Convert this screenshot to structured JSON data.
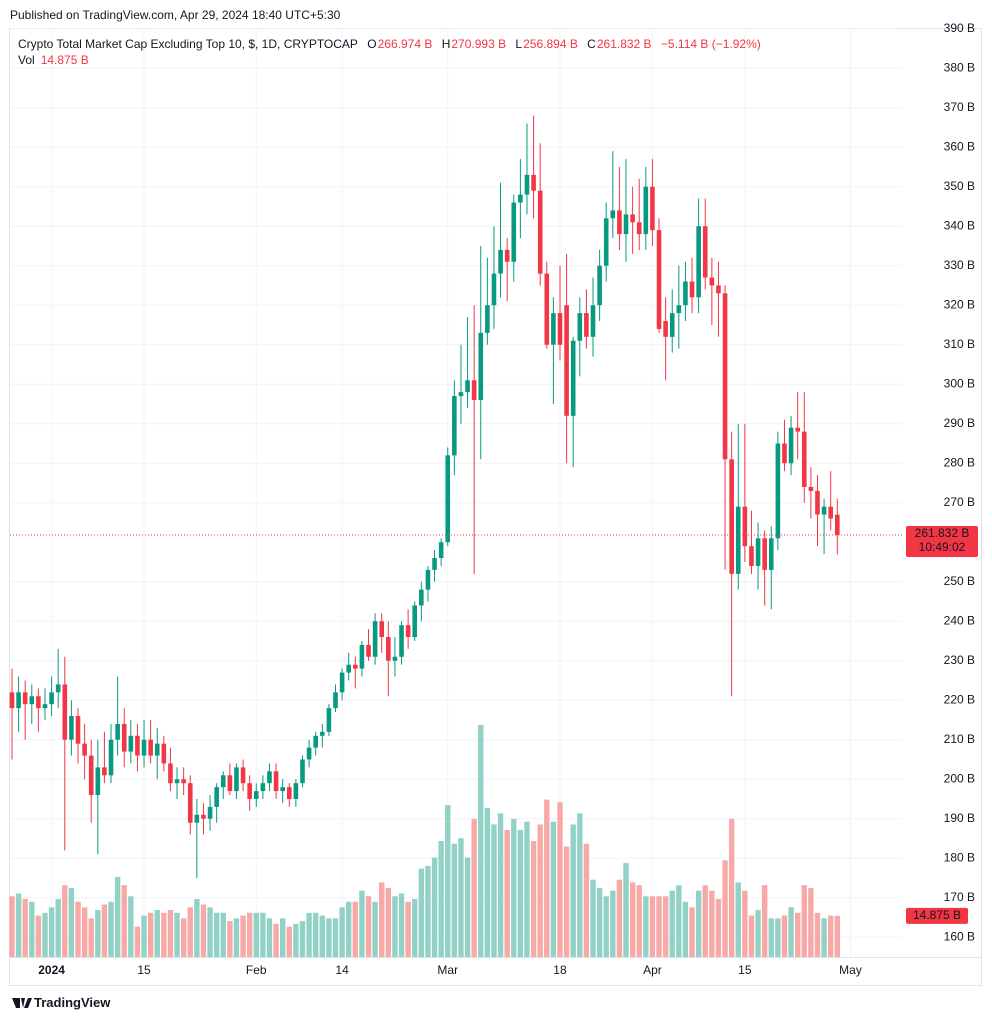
{
  "header": {
    "published": "Published on TradingView.com, Apr 29, 2024 18:40 UTC+5:30"
  },
  "chart_data": {
    "type": "candlestick",
    "title": "Crypto Total Market Cap Excluding Top 10, $, 1D, CRYPTOCAP",
    "readout": {
      "o": "O",
      "o_value": "266.974 B",
      "h": "H",
      "h_value": "270.993 B",
      "l": "L",
      "l_value": "256.894 B",
      "c": "C",
      "c_value": "261.832 B",
      "change": "−5.114 B (−1.92%)"
    },
    "volume_title": "Vol",
    "volume_value_label": "14.875 B",
    "close_value_label": "261.832 B",
    "countdown": "10:49:02",
    "colors": {
      "up": "#089981",
      "down": "#f23645",
      "volume_up": "#92d2c6",
      "volume_down": "#f7a9a7"
    },
    "open": [
      222,
      218,
      222,
      219,
      221,
      218,
      219,
      222,
      224,
      210,
      216,
      209,
      206,
      196,
      203,
      201,
      210,
      214,
      207,
      211,
      206,
      210,
      206,
      209,
      204,
      199,
      200,
      199,
      189,
      191,
      190,
      193,
      198,
      201,
      197,
      203,
      199,
      195,
      197,
      199,
      202,
      197,
      198,
      195,
      199,
      205,
      208,
      211,
      212,
      218,
      222,
      227,
      229,
      228,
      234,
      231,
      240,
      236,
      230,
      231,
      239,
      236,
      244,
      248,
      253,
      256,
      260,
      282,
      297,
      298,
      301,
      296,
      313,
      320,
      328,
      334,
      331,
      346,
      348,
      353,
      349,
      328,
      310,
      318,
      320,
      292,
      311,
      318,
      312,
      320,
      330,
      342,
      344,
      338,
      343,
      341,
      338,
      350,
      339,
      316,
      312,
      318,
      320,
      326,
      322,
      340,
      327,
      325,
      323,
      281,
      252,
      269,
      259,
      254,
      261,
      253,
      261,
      285,
      280,
      289,
      288,
      274,
      273,
      267,
      269,
      266.974
    ],
    "high": [
      228,
      226,
      225,
      224,
      223,
      223,
      226,
      233,
      231,
      220,
      218,
      214,
      210,
      210,
      212,
      214,
      226,
      218,
      215,
      214,
      215,
      215,
      213,
      211,
      208,
      203,
      203,
      201,
      195,
      194,
      196,
      199,
      202,
      204,
      204,
      205,
      201,
      199,
      201,
      204,
      204,
      200,
      199,
      200,
      206,
      210,
      212,
      214,
      219,
      224,
      228,
      232,
      231,
      235,
      238,
      242,
      242,
      240,
      236,
      240,
      243,
      245,
      250,
      254,
      258,
      261,
      284,
      301,
      310,
      317,
      320,
      335,
      332,
      340,
      351,
      337,
      348,
      357,
      366,
      368,
      361,
      331,
      322,
      330,
      333,
      312,
      322,
      324,
      327,
      334,
      346,
      359,
      355,
      357,
      350,
      352,
      355,
      357,
      342,
      322,
      324,
      330,
      331,
      332,
      347,
      347,
      332,
      331,
      325,
      288,
      290,
      290,
      268,
      265,
      263,
      264,
      288,
      291,
      292,
      298,
      298,
      279,
      277,
      271,
      278,
      270.993
    ],
    "low": [
      205,
      212,
      210,
      214,
      212,
      215,
      216,
      218,
      182,
      206,
      204,
      200,
      189,
      181,
      199,
      199,
      206,
      203,
      204,
      202,
      203,
      204,
      200,
      202,
      197,
      195,
      196,
      186,
      175,
      186,
      187,
      189,
      195,
      196,
      195,
      197,
      192,
      193,
      195,
      197,
      195,
      194,
      193,
      193,
      198,
      203,
      206,
      208,
      211,
      217,
      220,
      225,
      223,
      226,
      230,
      229,
      232,
      221,
      226,
      229,
      233,
      235,
      240,
      245,
      250,
      254,
      259,
      277,
      290,
      294,
      252,
      281,
      310,
      314,
      322,
      321,
      326,
      337,
      343,
      342,
      325,
      309,
      295,
      306,
      280,
      279,
      302,
      309,
      307,
      316,
      326,
      337,
      334,
      331,
      333,
      334,
      334,
      335,
      313,
      301,
      308,
      309,
      316,
      318,
      318,
      324,
      315,
      312,
      253,
      221,
      248,
      255,
      252,
      248,
      244,
      243,
      258,
      278,
      277,
      281,
      270,
      266,
      259,
      257,
      263,
      256.894
    ],
    "close": [
      218,
      222,
      219,
      221,
      218,
      219,
      222,
      224,
      210,
      216,
      209,
      206,
      196,
      203,
      201,
      210,
      214,
      207,
      211,
      206,
      210,
      206,
      209,
      204,
      199,
      200,
      199,
      189,
      191,
      190,
      193,
      198,
      201,
      197,
      203,
      199,
      195,
      197,
      199,
      202,
      197,
      198,
      195,
      199,
      205,
      208,
      211,
      212,
      218,
      222,
      227,
      229,
      228,
      234,
      231,
      240,
      236,
      230,
      231,
      239,
      236,
      244,
      248,
      253,
      256,
      260,
      282,
      297,
      298,
      301,
      296,
      313,
      320,
      328,
      334,
      331,
      346,
      348,
      353,
      349,
      328,
      310,
      318,
      310,
      292,
      311,
      318,
      312,
      320,
      330,
      342,
      344,
      338,
      343,
      341,
      338,
      350,
      339,
      314,
      312,
      318,
      320,
      326,
      322,
      340,
      327,
      325,
      323,
      281,
      252,
      269,
      259,
      254,
      261,
      253,
      261,
      285,
      280,
      289,
      288,
      274,
      273,
      267,
      269,
      266,
      261.832
    ],
    "volume": [
      22,
      23,
      21,
      20,
      15,
      16,
      18,
      21,
      26,
      25,
      20,
      18,
      14,
      17,
      19,
      20,
      29,
      26,
      22,
      11,
      15,
      16,
      17,
      16,
      17,
      16,
      14,
      18,
      21,
      19,
      18,
      16,
      16,
      13,
      14,
      15,
      16,
      16,
      16,
      14,
      12,
      14,
      11,
      12,
      13,
      16,
      16,
      15,
      14,
      14,
      18,
      20,
      20,
      24,
      22,
      20,
      27,
      25,
      22,
      23,
      20,
      21,
      32,
      33,
      36,
      42,
      55,
      41,
      43,
      36,
      50,
      84,
      54,
      48,
      52,
      46,
      50,
      46,
      49,
      42,
      48,
      57,
      49,
      56,
      40,
      48,
      52,
      41,
      28,
      25,
      22,
      24,
      28,
      34,
      27,
      26,
      22,
      22,
      22,
      22,
      24,
      26,
      20,
      18,
      24,
      26,
      24,
      21,
      35,
      50,
      27,
      24,
      15,
      17,
      26,
      14,
      14,
      15,
      18,
      16,
      26,
      25,
      16,
      14,
      15,
      14.875
    ],
    "xlim": [
      -0.3,
      134.8
    ],
    "xticks": [
      {
        "value": 6,
        "label": "2024"
      },
      {
        "value": 20,
        "label": "15"
      },
      {
        "value": 37,
        "label": "Feb"
      },
      {
        "value": 50,
        "label": "14"
      },
      {
        "value": 66,
        "label": "Mar"
      },
      {
        "value": 83,
        "label": "18"
      },
      {
        "value": 97,
        "label": "Apr"
      },
      {
        "value": 111,
        "label": "15"
      },
      {
        "value": 127,
        "label": "May"
      }
    ],
    "ylim": [
      155,
      390
    ],
    "yticks": [
      {
        "value": 390,
        "label": "390 B"
      },
      {
        "value": 380,
        "label": "380 B"
      },
      {
        "value": 370,
        "label": "370 B"
      },
      {
        "value": 360,
        "label": "360 B"
      },
      {
        "value": 350,
        "label": "350 B"
      },
      {
        "value": 340,
        "label": "340 B"
      },
      {
        "value": 330,
        "label": "330 B"
      },
      {
        "value": 320,
        "label": "320 B"
      },
      {
        "value": 310,
        "label": "310 B"
      },
      {
        "value": 300,
        "label": "300 B"
      },
      {
        "value": 290,
        "label": "290 B"
      },
      {
        "value": 280,
        "label": "280 B"
      },
      {
        "value": 270,
        "label": "270 B"
      },
      {
        "value": 250,
        "label": "250 B"
      },
      {
        "value": 240,
        "label": "240 B"
      },
      {
        "value": 230,
        "label": "230 B"
      },
      {
        "value": 220,
        "label": "220 B"
      },
      {
        "value": 210,
        "label": "210 B"
      },
      {
        "value": 200,
        "label": "200 B"
      },
      {
        "value": 190,
        "label": "190 B"
      },
      {
        "value": 180,
        "label": "180 B"
      },
      {
        "value": 170,
        "label": "170 B"
      },
      {
        "value": 160,
        "label": "160 B"
      }
    ],
    "grid": true
  },
  "footer": {
    "brand": "TradingView"
  }
}
